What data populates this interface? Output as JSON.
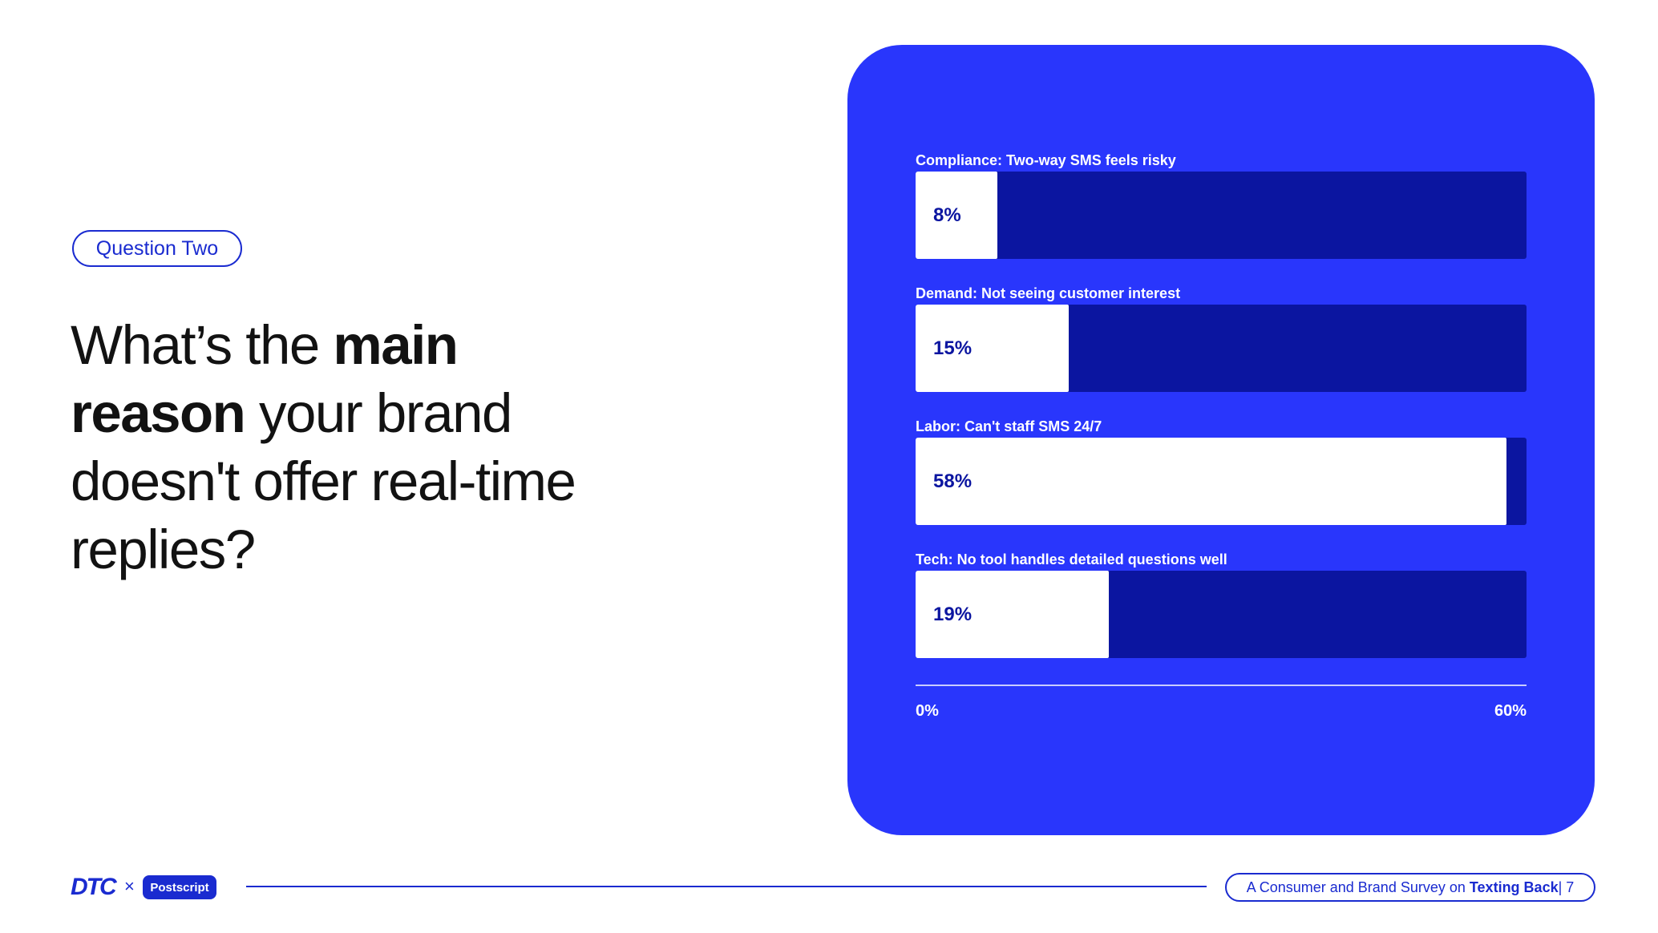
{
  "slide": {
    "tag": "Question Two",
    "headline": {
      "p1": "What’s the ",
      "b1": "main",
      "p2": " ",
      "b2": "reason",
      "p3": " your brand doesn't offer real-time replies?"
    }
  },
  "colors": {
    "accent": "#1a2bd0",
    "panel": "#2936fc",
    "track": "#0b15a0",
    "bar": "#ffffff"
  },
  "chart_data": {
    "type": "bar",
    "orientation": "horizontal",
    "categories": [
      "Compliance: Two-way SMS feels risky",
      "Demand: Not seeing customer interest",
      "Labor: Can't staff SMS 24/7",
      "Tech: No tool handles detailed questions well"
    ],
    "values": [
      8,
      15,
      58,
      19
    ],
    "data_labels": [
      "8%",
      "15%",
      "58%",
      "19%"
    ],
    "xlim": [
      0,
      60
    ],
    "tick_labels": [
      "0%",
      "60%"
    ],
    "grid": false,
    "legend": "none"
  },
  "footer": {
    "logo_dtc": "DTC",
    "logo_x": "×",
    "logo_partner": "Postscript",
    "survey_prefix": "A Consumer and Brand Survey on ",
    "survey_bold": "Texting Back",
    "page": " | 7"
  }
}
